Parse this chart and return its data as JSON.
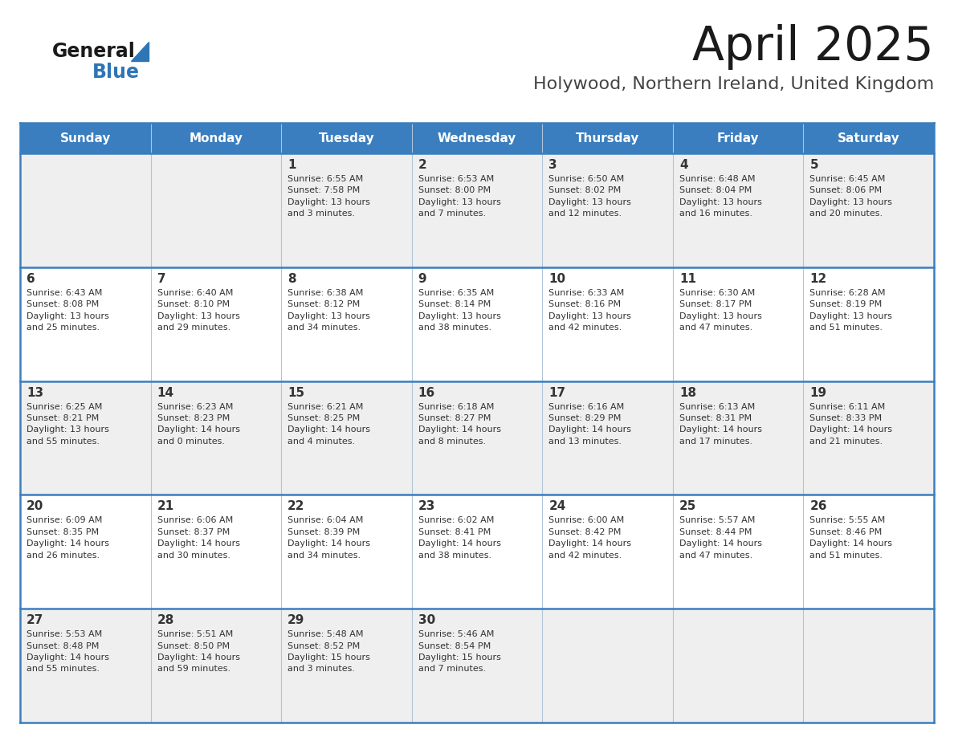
{
  "title": "April 2025",
  "subtitle": "Holywood, Northern Ireland, United Kingdom",
  "days_of_week": [
    "Sunday",
    "Monday",
    "Tuesday",
    "Wednesday",
    "Thursday",
    "Friday",
    "Saturday"
  ],
  "header_bg": "#3a7ebf",
  "header_text": "#ffffff",
  "row_bg_odd": "#efefef",
  "row_bg_even": "#ffffff",
  "border_color": "#3a7ebf",
  "divider_color": "#b0c4d8",
  "text_color": "#333333",
  "title_color": "#1a1a1a",
  "subtitle_color": "#444444",
  "logo_black": "#1a1a1a",
  "logo_blue": "#2e75b6",
  "fig_width": 11.88,
  "fig_height": 9.18,
  "weeks": [
    [
      {
        "day": "",
        "info": ""
      },
      {
        "day": "",
        "info": ""
      },
      {
        "day": "1",
        "info": "Sunrise: 6:55 AM\nSunset: 7:58 PM\nDaylight: 13 hours\nand 3 minutes."
      },
      {
        "day": "2",
        "info": "Sunrise: 6:53 AM\nSunset: 8:00 PM\nDaylight: 13 hours\nand 7 minutes."
      },
      {
        "day": "3",
        "info": "Sunrise: 6:50 AM\nSunset: 8:02 PM\nDaylight: 13 hours\nand 12 minutes."
      },
      {
        "day": "4",
        "info": "Sunrise: 6:48 AM\nSunset: 8:04 PM\nDaylight: 13 hours\nand 16 minutes."
      },
      {
        "day": "5",
        "info": "Sunrise: 6:45 AM\nSunset: 8:06 PM\nDaylight: 13 hours\nand 20 minutes."
      }
    ],
    [
      {
        "day": "6",
        "info": "Sunrise: 6:43 AM\nSunset: 8:08 PM\nDaylight: 13 hours\nand 25 minutes."
      },
      {
        "day": "7",
        "info": "Sunrise: 6:40 AM\nSunset: 8:10 PM\nDaylight: 13 hours\nand 29 minutes."
      },
      {
        "day": "8",
        "info": "Sunrise: 6:38 AM\nSunset: 8:12 PM\nDaylight: 13 hours\nand 34 minutes."
      },
      {
        "day": "9",
        "info": "Sunrise: 6:35 AM\nSunset: 8:14 PM\nDaylight: 13 hours\nand 38 minutes."
      },
      {
        "day": "10",
        "info": "Sunrise: 6:33 AM\nSunset: 8:16 PM\nDaylight: 13 hours\nand 42 minutes."
      },
      {
        "day": "11",
        "info": "Sunrise: 6:30 AM\nSunset: 8:17 PM\nDaylight: 13 hours\nand 47 minutes."
      },
      {
        "day": "12",
        "info": "Sunrise: 6:28 AM\nSunset: 8:19 PM\nDaylight: 13 hours\nand 51 minutes."
      }
    ],
    [
      {
        "day": "13",
        "info": "Sunrise: 6:25 AM\nSunset: 8:21 PM\nDaylight: 13 hours\nand 55 minutes."
      },
      {
        "day": "14",
        "info": "Sunrise: 6:23 AM\nSunset: 8:23 PM\nDaylight: 14 hours\nand 0 minutes."
      },
      {
        "day": "15",
        "info": "Sunrise: 6:21 AM\nSunset: 8:25 PM\nDaylight: 14 hours\nand 4 minutes."
      },
      {
        "day": "16",
        "info": "Sunrise: 6:18 AM\nSunset: 8:27 PM\nDaylight: 14 hours\nand 8 minutes."
      },
      {
        "day": "17",
        "info": "Sunrise: 6:16 AM\nSunset: 8:29 PM\nDaylight: 14 hours\nand 13 minutes."
      },
      {
        "day": "18",
        "info": "Sunrise: 6:13 AM\nSunset: 8:31 PM\nDaylight: 14 hours\nand 17 minutes."
      },
      {
        "day": "19",
        "info": "Sunrise: 6:11 AM\nSunset: 8:33 PM\nDaylight: 14 hours\nand 21 minutes."
      }
    ],
    [
      {
        "day": "20",
        "info": "Sunrise: 6:09 AM\nSunset: 8:35 PM\nDaylight: 14 hours\nand 26 minutes."
      },
      {
        "day": "21",
        "info": "Sunrise: 6:06 AM\nSunset: 8:37 PM\nDaylight: 14 hours\nand 30 minutes."
      },
      {
        "day": "22",
        "info": "Sunrise: 6:04 AM\nSunset: 8:39 PM\nDaylight: 14 hours\nand 34 minutes."
      },
      {
        "day": "23",
        "info": "Sunrise: 6:02 AM\nSunset: 8:41 PM\nDaylight: 14 hours\nand 38 minutes."
      },
      {
        "day": "24",
        "info": "Sunrise: 6:00 AM\nSunset: 8:42 PM\nDaylight: 14 hours\nand 42 minutes."
      },
      {
        "day": "25",
        "info": "Sunrise: 5:57 AM\nSunset: 8:44 PM\nDaylight: 14 hours\nand 47 minutes."
      },
      {
        "day": "26",
        "info": "Sunrise: 5:55 AM\nSunset: 8:46 PM\nDaylight: 14 hours\nand 51 minutes."
      }
    ],
    [
      {
        "day": "27",
        "info": "Sunrise: 5:53 AM\nSunset: 8:48 PM\nDaylight: 14 hours\nand 55 minutes."
      },
      {
        "day": "28",
        "info": "Sunrise: 5:51 AM\nSunset: 8:50 PM\nDaylight: 14 hours\nand 59 minutes."
      },
      {
        "day": "29",
        "info": "Sunrise: 5:48 AM\nSunset: 8:52 PM\nDaylight: 15 hours\nand 3 minutes."
      },
      {
        "day": "30",
        "info": "Sunrise: 5:46 AM\nSunset: 8:54 PM\nDaylight: 15 hours\nand 7 minutes."
      },
      {
        "day": "",
        "info": ""
      },
      {
        "day": "",
        "info": ""
      },
      {
        "day": "",
        "info": ""
      }
    ]
  ]
}
